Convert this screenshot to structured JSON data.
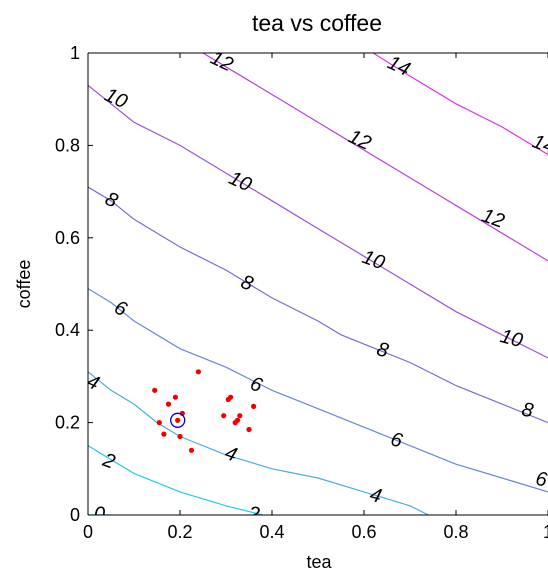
{
  "chart_data": {
    "type": "contour",
    "title": "tea vs coffee",
    "xlabel": "tea",
    "ylabel": "coffee",
    "xlim": [
      0,
      1
    ],
    "ylim": [
      0,
      1
    ],
    "x_ticks": [
      "0",
      "0.2",
      "0.4",
      "0.6",
      "0.8",
      "1"
    ],
    "y_ticks": [
      "0",
      "0.2",
      "0.4",
      "0.6",
      "0.8",
      "1"
    ],
    "grid": false,
    "contours": [
      {
        "level": "0",
        "color": "#00e0f0",
        "points": [
          [
            0,
            0.0
          ],
          [
            0.05,
            0.0
          ]
        ]
      },
      {
        "level": "2",
        "color": "#20cce6",
        "points": [
          [
            0,
            0.15
          ],
          [
            0.05,
            0.12
          ],
          [
            0.1,
            0.09
          ],
          [
            0.2,
            0.05
          ],
          [
            0.3,
            0.02
          ],
          [
            0.38,
            0.0
          ]
        ]
      },
      {
        "level": "4",
        "color": "#4aaee0",
        "points": [
          [
            0,
            0.31
          ],
          [
            0.05,
            0.27
          ],
          [
            0.1,
            0.24
          ],
          [
            0.15,
            0.2
          ],
          [
            0.2,
            0.17
          ],
          [
            0.3,
            0.13
          ],
          [
            0.4,
            0.1
          ],
          [
            0.5,
            0.08
          ],
          [
            0.6,
            0.05
          ],
          [
            0.7,
            0.02
          ],
          [
            0.74,
            0.0
          ]
        ]
      },
      {
        "level": "6",
        "color": "#6b88d8",
        "points": [
          [
            0,
            0.49
          ],
          [
            0.05,
            0.46
          ],
          [
            0.1,
            0.42
          ],
          [
            0.2,
            0.36
          ],
          [
            0.3,
            0.32
          ],
          [
            0.4,
            0.27
          ],
          [
            0.5,
            0.23
          ],
          [
            0.6,
            0.19
          ],
          [
            0.7,
            0.15
          ],
          [
            0.8,
            0.11
          ],
          [
            0.9,
            0.08
          ],
          [
            1.0,
            0.05
          ]
        ]
      },
      {
        "level": "8",
        "color": "#7f6ad0",
        "points": [
          [
            0,
            0.71
          ],
          [
            0.05,
            0.68
          ],
          [
            0.1,
            0.64
          ],
          [
            0.2,
            0.58
          ],
          [
            0.3,
            0.53
          ],
          [
            0.4,
            0.47
          ],
          [
            0.5,
            0.42
          ],
          [
            0.55,
            0.39
          ],
          [
            0.6,
            0.37
          ],
          [
            0.7,
            0.33
          ],
          [
            0.8,
            0.28
          ],
          [
            0.9,
            0.24
          ],
          [
            1.0,
            0.2
          ]
        ]
      },
      {
        "level": "10",
        "color": "#9a54d4",
        "points": [
          [
            0,
            0.93
          ],
          [
            0.05,
            0.89
          ],
          [
            0.1,
            0.85
          ],
          [
            0.2,
            0.8
          ],
          [
            0.3,
            0.74
          ],
          [
            0.4,
            0.68
          ],
          [
            0.5,
            0.62
          ],
          [
            0.6,
            0.56
          ],
          [
            0.7,
            0.5
          ],
          [
            0.8,
            0.44
          ],
          [
            0.9,
            0.39
          ],
          [
            1.0,
            0.34
          ]
        ]
      },
      {
        "level": "12",
        "color": "#b742d8",
        "points": [
          [
            0.25,
            1.0
          ],
          [
            0.35,
            0.94
          ],
          [
            0.45,
            0.88
          ],
          [
            0.55,
            0.82
          ],
          [
            0.65,
            0.76
          ],
          [
            0.75,
            0.7
          ],
          [
            0.85,
            0.64
          ],
          [
            0.95,
            0.58
          ],
          [
            1.0,
            0.55
          ]
        ]
      },
      {
        "level": "14",
        "color": "#d838e0",
        "points": [
          [
            0.62,
            1.0
          ],
          [
            0.7,
            0.95
          ],
          [
            0.8,
            0.89
          ],
          [
            0.9,
            0.84
          ],
          [
            1.0,
            0.78
          ]
        ]
      }
    ],
    "contour_labels": [
      {
        "text": "0",
        "x": 0.025,
        "y": 0.0,
        "rot": 0
      },
      {
        "text": "2",
        "x": 0.045,
        "y": 0.115,
        "rot": 20
      },
      {
        "text": "2",
        "x": 0.36,
        "y": 0.0,
        "rot": 10
      },
      {
        "text": "4",
        "x": 0.01,
        "y": 0.285,
        "rot": 25
      },
      {
        "text": "4",
        "x": 0.31,
        "y": 0.13,
        "rot": 20
      },
      {
        "text": "4",
        "x": 0.625,
        "y": 0.04,
        "rot": 15
      },
      {
        "text": "6",
        "x": 0.07,
        "y": 0.445,
        "rot": 25
      },
      {
        "text": "6",
        "x": 0.365,
        "y": 0.28,
        "rot": 20
      },
      {
        "text": "6",
        "x": 0.67,
        "y": 0.16,
        "rot": 15
      },
      {
        "text": "6",
        "x": 0.985,
        "y": 0.075,
        "rot": 10
      },
      {
        "text": "8",
        "x": 0.05,
        "y": 0.68,
        "rot": 25
      },
      {
        "text": "8",
        "x": 0.345,
        "y": 0.5,
        "rot": 20
      },
      {
        "text": "8",
        "x": 0.64,
        "y": 0.355,
        "rot": 15
      },
      {
        "text": "8",
        "x": 0.955,
        "y": 0.225,
        "rot": 12
      },
      {
        "text": "10",
        "x": 0.06,
        "y": 0.9,
        "rot": 25
      },
      {
        "text": "10",
        "x": 0.33,
        "y": 0.72,
        "rot": 25
      },
      {
        "text": "10",
        "x": 0.62,
        "y": 0.55,
        "rot": 20
      },
      {
        "text": "10",
        "x": 0.92,
        "y": 0.38,
        "rot": 15
      },
      {
        "text": "12",
        "x": 0.29,
        "y": 0.98,
        "rot": 25
      },
      {
        "text": "12",
        "x": 0.59,
        "y": 0.81,
        "rot": 25
      },
      {
        "text": "12",
        "x": 0.88,
        "y": 0.64,
        "rot": 20
      },
      {
        "text": "14",
        "x": 0.675,
        "y": 0.97,
        "rot": 25
      },
      {
        "text": "14",
        "x": 0.99,
        "y": 0.8,
        "rot": 20
      }
    ],
    "scatter_points": [
      [
        0.145,
        0.27
      ],
      [
        0.155,
        0.2
      ],
      [
        0.165,
        0.175
      ],
      [
        0.175,
        0.24
      ],
      [
        0.19,
        0.255
      ],
      [
        0.195,
        0.205
      ],
      [
        0.2,
        0.17
      ],
      [
        0.205,
        0.22
      ],
      [
        0.225,
        0.14
      ],
      [
        0.24,
        0.31
      ],
      [
        0.295,
        0.215
      ],
      [
        0.305,
        0.25
      ],
      [
        0.31,
        0.255
      ],
      [
        0.32,
        0.2
      ],
      [
        0.325,
        0.205
      ],
      [
        0.33,
        0.215
      ],
      [
        0.35,
        0.185
      ],
      [
        0.36,
        0.235
      ]
    ],
    "scatter_color": "#ee0000",
    "marker": {
      "x": 0.195,
      "y": 0.205,
      "color": "#0000dd"
    }
  }
}
